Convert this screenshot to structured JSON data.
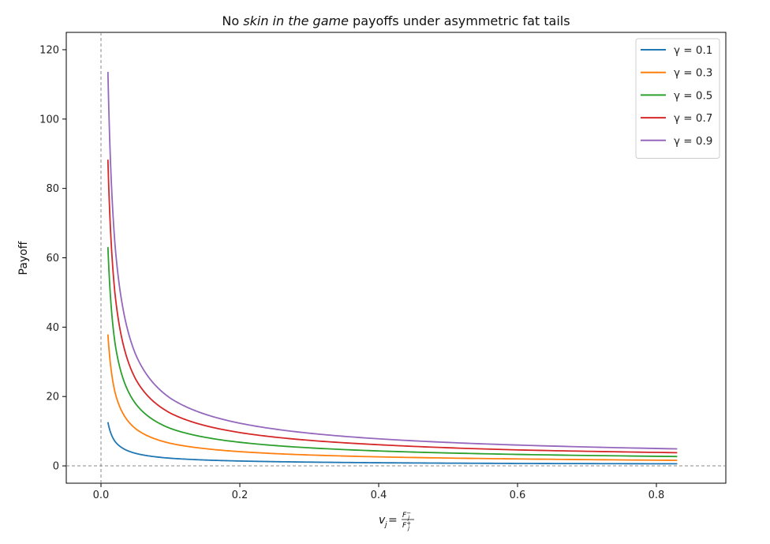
{
  "chart_data": {
    "type": "line",
    "title_parts": {
      "before": "No ",
      "italic": "skin in the game",
      "after": " payoffs under asymmetric fat tails"
    },
    "ylabel": "Payoff",
    "xlabel_parts": {
      "lhs": "v",
      "lhs_sub": "j",
      "eq": " = ",
      "num": "F",
      "num_sup": "−",
      "num_sub": "j",
      "den": "F",
      "den_sup": "+",
      "den_sub": "j"
    },
    "xlim": [
      -0.05,
      0.9
    ],
    "ylim": [
      -5,
      125
    ],
    "xticks": [
      0.0,
      0.2,
      0.4,
      0.6,
      0.8
    ],
    "xtick_labels": [
      "0.0",
      "0.2",
      "0.4",
      "0.6",
      "0.8"
    ],
    "yticks": [
      0,
      20,
      40,
      60,
      80,
      100,
      120
    ],
    "ytick_labels": [
      "0",
      "20",
      "40",
      "60",
      "80",
      "100",
      "120"
    ],
    "reference_lines": {
      "x": 0,
      "y": 0,
      "style": "dashed",
      "color": "#888888"
    },
    "legend_position": "top-right",
    "x_range": [
      0.01,
      0.83
    ],
    "series": [
      {
        "name": "γ = 0.1",
        "gamma": 0.1,
        "color": "#1f77b4",
        "x": [
          0.01,
          0.02,
          0.05,
          0.1,
          0.2,
          0.4,
          0.6,
          0.83
        ],
        "y": [
          12.6,
          7.1,
          3.6,
          2.2,
          1.4,
          0.9,
          0.7,
          0.6
        ]
      },
      {
        "name": "γ = 0.3",
        "gamma": 0.3,
        "color": "#ff7f0e",
        "x": [
          0.01,
          0.02,
          0.05,
          0.1,
          0.2,
          0.4,
          0.6,
          0.83
        ],
        "y": [
          37.9,
          21.4,
          10.7,
          6.5,
          4.1,
          2.6,
          2.0,
          1.6
        ]
      },
      {
        "name": "γ = 0.5",
        "gamma": 0.5,
        "color": "#2ca02c",
        "x": [
          0.01,
          0.02,
          0.05,
          0.1,
          0.2,
          0.4,
          0.6,
          0.83
        ],
        "y": [
          63.1,
          35.7,
          17.9,
          10.8,
          6.8,
          4.3,
          3.3,
          2.7
        ]
      },
      {
        "name": "γ = 0.7",
        "gamma": 0.7,
        "color": "#d62728",
        "x": [
          0.01,
          0.02,
          0.05,
          0.1,
          0.2,
          0.4,
          0.6,
          0.83
        ],
        "y": [
          88.3,
          50.0,
          25.0,
          15.2,
          9.6,
          6.1,
          4.6,
          3.8
        ]
      },
      {
        "name": "γ = 0.9",
        "gamma": 0.9,
        "color": "#9467bd",
        "x": [
          0.01,
          0.02,
          0.05,
          0.1,
          0.2,
          0.4,
          0.6,
          0.83
        ],
        "y": [
          113.6,
          64.3,
          32.1,
          19.5,
          12.3,
          7.8,
          6.0,
          4.9
        ]
      }
    ]
  }
}
